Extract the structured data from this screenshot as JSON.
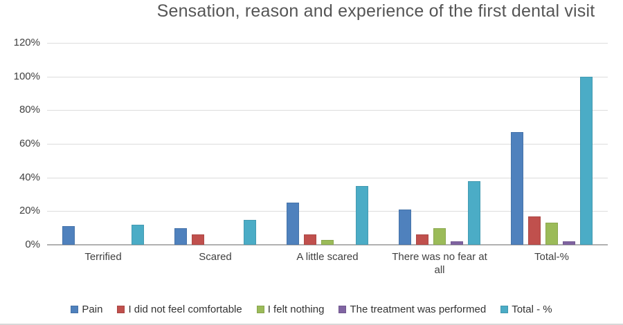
{
  "chart_data": {
    "type": "bar",
    "title": "Sensation, reason and experience of the first dental visit",
    "categories": [
      "Terrified",
      "Scared",
      "A little scared",
      "There was no fear at all",
      "Total-%"
    ],
    "series": [
      {
        "name": "Pain",
        "color": "#4F81BD",
        "values": [
          11,
          10,
          25,
          21,
          67
        ]
      },
      {
        "name": "I did not feel comfortable",
        "color": "#C0504D",
        "values": [
          0,
          6,
          6,
          6,
          17
        ]
      },
      {
        "name": "I felt nothing",
        "color": "#9BBB59",
        "values": [
          0,
          0,
          3,
          10,
          13
        ]
      },
      {
        "name": "The treatment was performed",
        "color": "#8064A2",
        "values": [
          0,
          0,
          0,
          2,
          2
        ]
      },
      {
        "name": "Total - %",
        "color": "#4BACC6",
        "values": [
          12,
          15,
          35,
          38,
          100
        ]
      }
    ],
    "ylim": [
      0,
      120
    ],
    "ytick_step": 20,
    "ytick_labels": [
      "0%",
      "20%",
      "40%",
      "60%",
      "80%",
      "100%",
      "120%"
    ],
    "xlabel": "",
    "ylabel": "",
    "grid": true,
    "legend_position": "bottom",
    "grid_color": "#DCDCDC",
    "axis_color": "#B0B0B0",
    "title_color": "#555555",
    "label_color": "#404040",
    "background_color": "#FFFFFF"
  }
}
